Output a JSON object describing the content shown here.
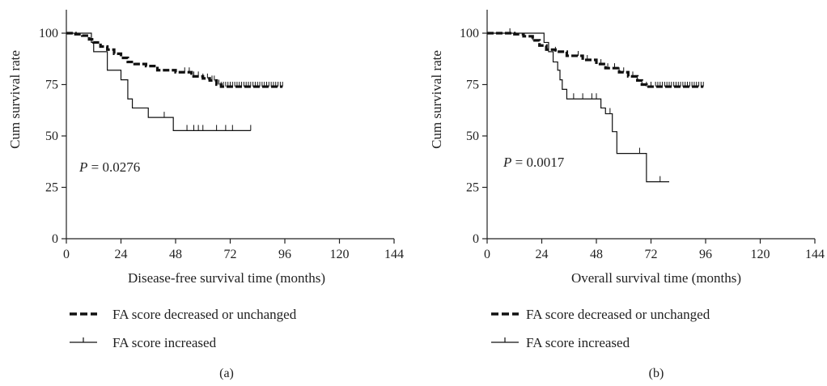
{
  "legend": {
    "decreased_label": "FA score decreased or unchanged",
    "increased_label": "FA score increased"
  },
  "chart_data": [
    {
      "type": "line",
      "panel_label": "(a)",
      "xlabel": "Disease-free survival time (months)",
      "ylabel": "Cum survival rate",
      "p_prefix": "P",
      "p_text": " = 0.0276",
      "x_ticks": [
        0,
        24,
        48,
        72,
        96,
        120,
        144
      ],
      "y_ticks": [
        0,
        25,
        50,
        75,
        100
      ],
      "xlim": [
        0,
        144
      ],
      "ylim": [
        0,
        100
      ],
      "legend_position": "below",
      "series": [
        {
          "name": "FA score decreased or unchanged",
          "style": "dashed",
          "steps": [
            [
              0,
              100
            ],
            [
              4,
              99.5
            ],
            [
              7,
              98.8
            ],
            [
              10,
              97
            ],
            [
              12,
              95.5
            ],
            [
              15,
              93.5
            ],
            [
              18,
              92
            ],
            [
              21,
              90
            ],
            [
              24,
              88
            ],
            [
              27,
              86
            ],
            [
              30,
              85
            ],
            [
              35,
              84
            ],
            [
              40,
              82
            ],
            [
              48,
              81
            ],
            [
              55,
              79
            ],
            [
              60,
              78
            ],
            [
              63,
              77
            ],
            [
              66,
              75
            ],
            [
              68,
              74
            ],
            [
              95,
              74
            ]
          ],
          "censored": [
            52,
            54,
            56,
            58,
            60,
            62,
            64,
            65,
            66,
            67,
            68,
            69,
            70,
            71,
            72,
            73,
            74,
            75,
            76,
            77,
            78,
            79,
            80,
            81,
            82,
            83,
            84,
            85,
            86,
            87,
            88,
            89,
            90,
            91,
            92,
            93,
            94,
            95
          ]
        },
        {
          "name": "FA score increased",
          "style": "solid",
          "steps": [
            [
              0,
              100
            ],
            [
              10,
              100
            ],
            [
              11,
              95.5
            ],
            [
              12,
              91
            ],
            [
              18,
              82
            ],
            [
              24,
              77.3
            ],
            [
              27,
              68
            ],
            [
              29,
              63.6
            ],
            [
              36,
              59
            ],
            [
              47,
              52.6
            ],
            [
              81,
              52.6
            ]
          ],
          "censored": [
            43,
            53,
            56,
            58,
            60,
            66,
            70,
            73,
            81
          ]
        }
      ]
    },
    {
      "type": "line",
      "panel_label": "(b)",
      "xlabel": "Overall survival time (months)",
      "ylabel": "Cum survival rate",
      "p_prefix": "P",
      "p_text": " = 0.0017",
      "x_ticks": [
        0,
        24,
        48,
        72,
        96,
        120,
        144
      ],
      "y_ticks": [
        0,
        25,
        50,
        75,
        100
      ],
      "xlim": [
        0,
        144
      ],
      "ylim": [
        0,
        100
      ],
      "legend_position": "below",
      "series": [
        {
          "name": "FA score decreased or unchanged",
          "style": "dashed",
          "steps": [
            [
              0,
              100
            ],
            [
              12,
              99.5
            ],
            [
              16,
              98.5
            ],
            [
              20,
              96.5
            ],
            [
              23,
              94
            ],
            [
              26,
              92
            ],
            [
              30,
              91
            ],
            [
              35,
              89
            ],
            [
              42,
              87
            ],
            [
              48,
              85
            ],
            [
              52,
              83
            ],
            [
              58,
              81
            ],
            [
              62,
              79
            ],
            [
              66,
              77
            ],
            [
              68,
              75
            ],
            [
              70,
              74
            ],
            [
              95,
              74
            ]
          ],
          "censored": [
            10,
            20,
            30,
            40,
            44,
            48,
            50,
            53,
            56,
            58,
            60,
            62,
            64,
            66,
            68,
            70,
            72,
            74,
            75,
            76,
            77,
            78,
            79,
            80,
            81,
            82,
            83,
            84,
            85,
            86,
            87,
            88,
            89,
            90,
            91,
            92,
            93,
            94,
            95
          ]
        },
        {
          "name": "FA score increased",
          "style": "solid",
          "steps": [
            [
              0,
              100
            ],
            [
              24,
              100
            ],
            [
              25,
              95.5
            ],
            [
              27,
              91
            ],
            [
              29,
              86
            ],
            [
              31,
              82
            ],
            [
              32,
              77.3
            ],
            [
              33,
              72.7
            ],
            [
              35,
              68
            ],
            [
              50,
              63.6
            ],
            [
              52,
              60.8
            ],
            [
              55,
              52.1
            ],
            [
              57,
              41.5
            ],
            [
              70,
              27.7
            ],
            [
              80,
              27.7
            ]
          ],
          "censored": [
            38,
            42,
            46,
            48,
            54,
            67,
            76
          ]
        }
      ]
    }
  ]
}
